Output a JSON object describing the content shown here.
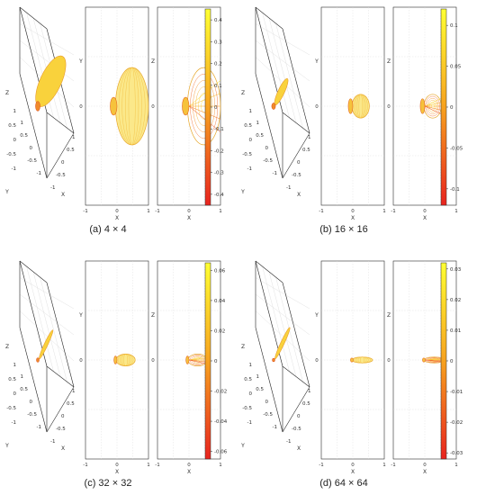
{
  "colors": {
    "high": "#ffff33",
    "low": "#e8241f",
    "frame": "#2a2a2a",
    "grid": "#d9d9d9"
  },
  "chart_data": [
    {
      "type": "3d-surface",
      "caption": "(a) 4 × 4",
      "views": {
        "iso": {
          "xlabel": "X",
          "ylabel": "Y",
          "zlabel": "Z"
        },
        "xy": {
          "xlabel": "X",
          "ylabel": "Y"
        },
        "xz": {
          "xlabel": "X",
          "ylabel": "Z"
        }
      },
      "xlim": [
        -1,
        1
      ],
      "ylim": [
        -1,
        1
      ],
      "zlim": [
        -1,
        1
      ],
      "xticks": [
        "-1",
        "0",
        "1"
      ],
      "iso_zticks": [
        "1",
        "0.5",
        "0",
        "-0.5",
        "-1"
      ],
      "iso_yticks": [
        "1",
        "0.5",
        "0",
        "-0.5",
        "-1"
      ],
      "iso_xticks": [
        "-1",
        "-0.5",
        "0",
        "0.5",
        "1"
      ],
      "main_lobe": {
        "forward_extent": 0.95,
        "half_width": 0.65
      },
      "back_lobe": {
        "back_extent": 0.18,
        "half_width": 0.18
      },
      "colorbar": {
        "ticks": [
          "0.4",
          "0.3",
          "0.2",
          "0.1",
          "0",
          "-0.1",
          "-0.2",
          "-0.3",
          "-0.4"
        ],
        "min": -0.45,
        "max": 0.45
      }
    },
    {
      "type": "3d-surface",
      "caption": "(b) 16 × 16",
      "views": {
        "iso": {
          "xlabel": "X",
          "ylabel": "Y",
          "zlabel": "Z"
        },
        "xy": {
          "xlabel": "X",
          "ylabel": "Y"
        },
        "xz": {
          "xlabel": "X",
          "ylabel": "Z"
        }
      },
      "xlim": [
        -1,
        1
      ],
      "ylim": [
        -1,
        1
      ],
      "zlim": [
        -1,
        1
      ],
      "xticks": [
        "-1",
        "0",
        "1"
      ],
      "iso_zticks": [
        "1",
        "0.5",
        "0",
        "-0.5",
        "-1"
      ],
      "iso_yticks": [
        "1",
        "0.5",
        "0",
        "-0.5",
        "-1"
      ],
      "iso_xticks": [
        "-1",
        "-0.5",
        "0",
        "0.5",
        "1"
      ],
      "main_lobe": {
        "forward_extent": 0.5,
        "half_width": 0.2
      },
      "back_lobe": {
        "back_extent": 0.12,
        "half_width": 0.15
      },
      "colorbar": {
        "ticks": [
          "0.1",
          "0.05",
          "0",
          "-0.05",
          "-0.1"
        ],
        "min": -0.12,
        "max": 0.12
      }
    },
    {
      "type": "3d-surface",
      "caption": "(c) 32 × 32",
      "views": {
        "iso": {
          "xlabel": "X",
          "ylabel": "Y",
          "zlabel": "Z"
        },
        "xy": {
          "xlabel": "X",
          "ylabel": "Y"
        },
        "xz": {
          "xlabel": "X",
          "ylabel": "Z"
        }
      },
      "xlim": [
        -1,
        1
      ],
      "ylim": [
        -1,
        1
      ],
      "zlim": [
        -1,
        1
      ],
      "xticks": [
        "-1",
        "0",
        "1"
      ],
      "iso_zticks": [
        "1",
        "0.5",
        "0",
        "-0.5",
        "-1"
      ],
      "iso_yticks": [
        "1",
        "0.5",
        "0",
        "-0.5",
        "-1"
      ],
      "iso_xticks": [
        "-1",
        "-0.5",
        "0",
        "0.5",
        "1"
      ],
      "main_lobe": {
        "forward_extent": 0.55,
        "half_width": 0.1
      },
      "back_lobe": {
        "back_extent": 0.08,
        "half_width": 0.08
      },
      "colorbar": {
        "ticks": [
          "0.06",
          "0.04",
          "0.02",
          "0",
          "-0.02",
          "-0.04",
          "-0.06"
        ],
        "min": -0.065,
        "max": 0.065
      }
    },
    {
      "type": "3d-surface",
      "caption": "(d) 64 × 64",
      "views": {
        "iso": {
          "xlabel": "X",
          "ylabel": "Y",
          "zlabel": "Z"
        },
        "xy": {
          "xlabel": "X",
          "ylabel": "Y"
        },
        "xz": {
          "xlabel": "X",
          "ylabel": "Z"
        }
      },
      "xlim": [
        -1,
        1
      ],
      "ylim": [
        -1,
        1
      ],
      "zlim": [
        -1,
        1
      ],
      "xticks": [
        "-1",
        "0",
        "1"
      ],
      "iso_zticks": [
        "1",
        "0.5",
        "0",
        "-0.5",
        "-1"
      ],
      "iso_yticks": [
        "1",
        "0.5",
        "0",
        "-0.5",
        "-1"
      ],
      "iso_xticks": [
        "-1",
        "-0.5",
        "0",
        "0.5",
        "1"
      ],
      "main_lobe": {
        "forward_extent": 0.6,
        "half_width": 0.05
      },
      "back_lobe": {
        "back_extent": 0.05,
        "half_width": 0.04
      },
      "colorbar": {
        "ticks": [
          "0.03",
          "0.02",
          "0.01",
          "0",
          "-0.01",
          "-0.02",
          "-0.03"
        ],
        "min": -0.032,
        "max": 0.032
      }
    }
  ]
}
